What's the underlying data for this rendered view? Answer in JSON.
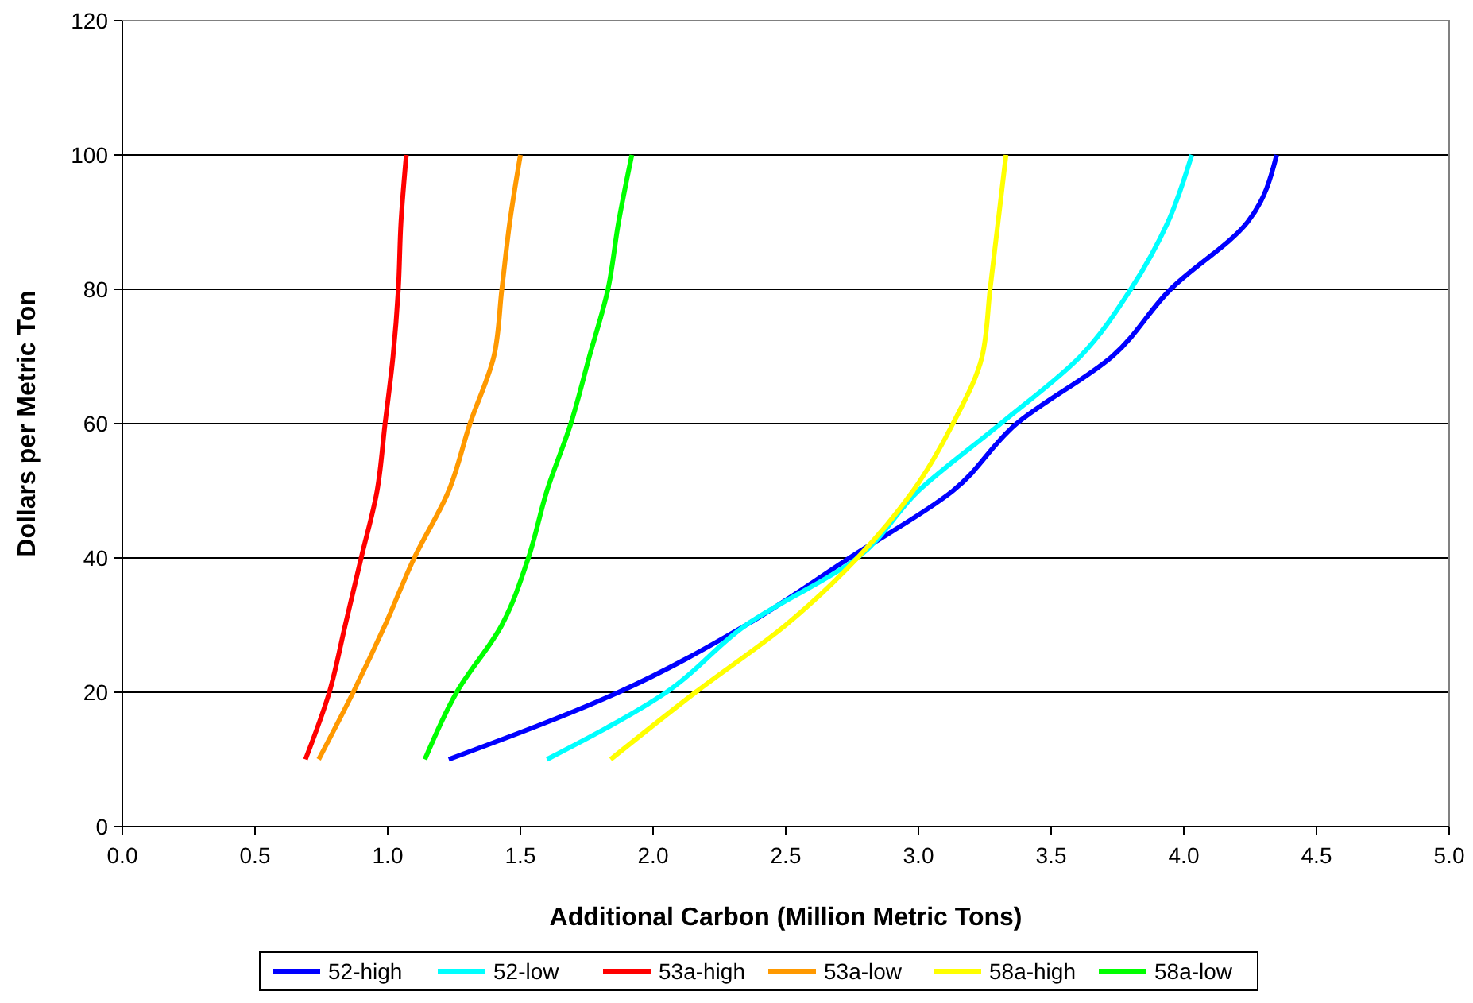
{
  "chart_data": {
    "type": "line",
    "xlabel": "Additional Carbon (Million Metric Tons)",
    "ylabel": "Dollars per Metric Ton",
    "xlim": [
      0,
      5
    ],
    "xticks": [
      {
        "value": 0,
        "label": "0.0"
      },
      {
        "value": 0.5,
        "label": "0.5"
      },
      {
        "value": 1,
        "label": "1.0"
      },
      {
        "value": 1.5,
        "label": "1.5"
      },
      {
        "value": 2,
        "label": "2.0"
      },
      {
        "value": 2.5,
        "label": "2.5"
      },
      {
        "value": 3,
        "label": "3.0"
      },
      {
        "value": 3.5,
        "label": "3.5"
      },
      {
        "value": 4,
        "label": "4.0"
      },
      {
        "value": 4.5,
        "label": "4.5"
      },
      {
        "value": 5,
        "label": "5.0"
      }
    ],
    "ylim": [
      0,
      120
    ],
    "yticks": [
      0,
      20,
      40,
      60,
      80,
      100,
      120
    ],
    "grid": "y",
    "legend": "bottom",
    "marker": "none",
    "line_style": "solid",
    "series": [
      {
        "name": "52-high",
        "color": "#0000ff",
        "x": [
          1.23,
          1.87,
          2.35,
          2.74,
          3.13,
          3.37,
          3.73,
          3.95,
          4.24,
          4.35
        ],
        "values": [
          10,
          20,
          30,
          40,
          50,
          60,
          70,
          80,
          90,
          100
        ]
      },
      {
        "name": "52-low",
        "color": "#00ffff",
        "x": [
          1.6,
          2.05,
          2.35,
          2.77,
          3.0,
          3.31,
          3.61,
          3.8,
          3.94,
          4.03
        ],
        "values": [
          10,
          20,
          30,
          40,
          50,
          60,
          70,
          80,
          90,
          100
        ]
      },
      {
        "name": "53a-high",
        "color": "#ff0000",
        "x": [
          0.69,
          0.78,
          0.84,
          0.9,
          0.96,
          0.99,
          1.02,
          1.04,
          1.05,
          1.07
        ],
        "values": [
          10,
          20,
          30,
          40,
          50,
          60,
          70,
          80,
          90,
          100
        ]
      },
      {
        "name": "53a-low",
        "color": "#ff9900",
        "x": [
          0.74,
          0.87,
          0.99,
          1.1,
          1.23,
          1.31,
          1.4,
          1.43,
          1.46,
          1.5
        ],
        "values": [
          10,
          20,
          30,
          40,
          50,
          60,
          70,
          80,
          90,
          100
        ]
      },
      {
        "name": "58a-high",
        "color": "#ffff00",
        "x": [
          1.84,
          2.16,
          2.5,
          2.77,
          2.98,
          3.13,
          3.24,
          3.27,
          3.3,
          3.33
        ],
        "values": [
          10,
          20,
          30,
          40,
          50,
          60,
          70,
          80,
          90,
          100
        ]
      },
      {
        "name": "58a-low",
        "color": "#00ff00",
        "x": [
          1.14,
          1.26,
          1.43,
          1.53,
          1.6,
          1.69,
          1.76,
          1.83,
          1.87,
          1.92
        ],
        "values": [
          10,
          20,
          30,
          40,
          50,
          60,
          70,
          80,
          90,
          100
        ]
      }
    ]
  }
}
